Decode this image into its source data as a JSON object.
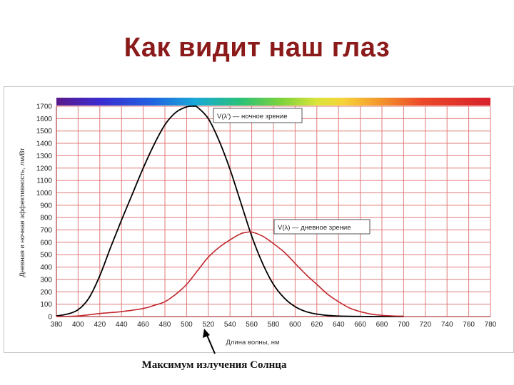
{
  "slide": {
    "title": "Как видит наш глаз",
    "caption": "Максимум излучения Солнца"
  },
  "chart_data": {
    "type": "line",
    "xlabel": "Длина волны, нм",
    "ylabel": "Дневная и ночная эффективность, лм/Вт",
    "xlim": [
      380,
      780
    ],
    "ylim": [
      0,
      1700
    ],
    "x_ticks": [
      380,
      400,
      420,
      440,
      460,
      480,
      500,
      520,
      540,
      560,
      580,
      600,
      620,
      640,
      660,
      680,
      700,
      720,
      740,
      760,
      780
    ],
    "y_ticks": [
      0,
      100,
      200,
      300,
      400,
      500,
      600,
      700,
      800,
      900,
      1000,
      1100,
      1200,
      1300,
      1400,
      1500,
      1600,
      1700
    ],
    "grid": true,
    "spectrum_bar": true,
    "series": [
      {
        "name": "V(λ') — ночное зрение",
        "color": "#000000",
        "x": [
          380,
          390,
          400,
          410,
          420,
          430,
          440,
          450,
          460,
          470,
          480,
          490,
          500,
          507,
          510,
          520,
          530,
          540,
          550,
          560,
          570,
          580,
          590,
          600,
          610,
          620,
          630,
          640,
          660,
          680,
          700
        ],
        "y": [
          5,
          20,
          55,
          150,
          330,
          560,
          780,
          990,
          1200,
          1390,
          1550,
          1650,
          1695,
          1700,
          1692,
          1600,
          1420,
          1190,
          920,
          650,
          430,
          260,
          150,
          80,
          40,
          20,
          9,
          4,
          1,
          0,
          0
        ]
      },
      {
        "name": "V(λ) — дневное зрение",
        "color": "#c0282d",
        "x": [
          380,
          400,
          420,
          440,
          460,
          470,
          480,
          490,
          500,
          510,
          520,
          530,
          540,
          550,
          555,
          560,
          570,
          580,
          590,
          600,
          610,
          620,
          630,
          640,
          650,
          660,
          670,
          680,
          690,
          700
        ],
        "y": [
          0,
          5,
          25,
          40,
          65,
          90,
          120,
          180,
          260,
          370,
          480,
          560,
          620,
          670,
          680,
          683,
          650,
          590,
          520,
          430,
          340,
          260,
          180,
          120,
          70,
          40,
          20,
          10,
          5,
          3
        ]
      }
    ]
  }
}
